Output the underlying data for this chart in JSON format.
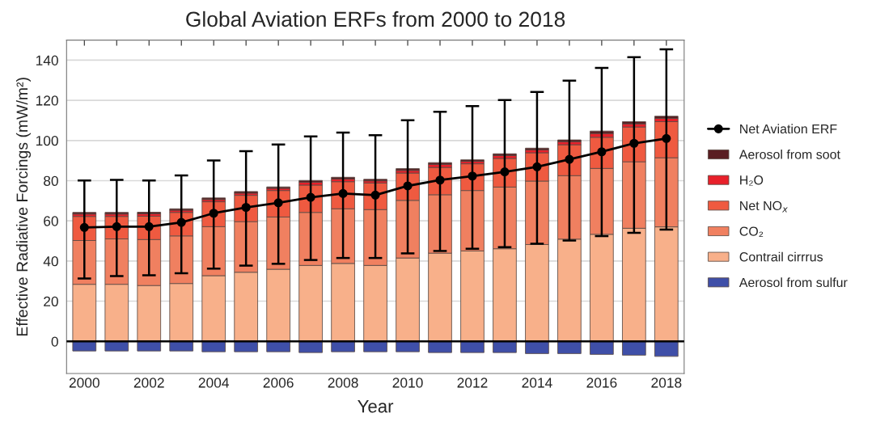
{
  "chart_data": {
    "type": "bar",
    "stacked": true,
    "title": "Global Aviation ERFs from 2000 to 2018",
    "xlabel": "Year",
    "ylabel": "Effective Radiative Forcings (mW/m²)",
    "categories": [
      "2000",
      null,
      "2002",
      null,
      "2004",
      null,
      "2006",
      null,
      "2008",
      null,
      "2010",
      null,
      "2012",
      null,
      "2014",
      null,
      "2016",
      null,
      "2018"
    ],
    "ylim": [
      -16,
      150
    ],
    "yticks": [
      0,
      20,
      40,
      60,
      80,
      100,
      120,
      140
    ],
    "grid": "y",
    "legend": "right",
    "ref_lines": [
      {
        "axis": "y",
        "value": 0,
        "color": "#000000"
      }
    ],
    "series": [
      {
        "name": "Aerosol from sulfur",
        "color": "#3f4fa8",
        "values": [
          -4.8,
          -4.8,
          -4.8,
          -4.8,
          -5.2,
          -5.2,
          -5.2,
          -5.6,
          -5.2,
          -5.2,
          -5.2,
          -5.6,
          -5.6,
          -5.6,
          -6.1,
          -6.1,
          -6.5,
          -6.9,
          -7.5
        ]
      },
      {
        "name": "Contrail cirrrus",
        "color": "#f8b08a",
        "values": [
          28.4,
          28.4,
          27.8,
          28.8,
          32.7,
          34.4,
          35.9,
          37.8,
          38.8,
          37.8,
          41.5,
          43.9,
          45.0,
          46.1,
          48.2,
          50.9,
          53.3,
          56.3,
          57.0
        ]
      },
      {
        "name": "CO₂",
        "color": "#f08060",
        "values": [
          21.8,
          22.6,
          22.9,
          23.7,
          24.4,
          25.2,
          26.0,
          26.4,
          27.2,
          27.8,
          28.7,
          29.1,
          30.1,
          30.7,
          31.6,
          31.6,
          32.8,
          33.1,
          34.4
        ]
      },
      {
        "name": "Net NO$_{x}$",
        "color": "#ef5a40",
        "values": [
          12.0,
          11.2,
          11.6,
          11.7,
          12.4,
          13.1,
          13.2,
          13.6,
          13.5,
          13.2,
          13.6,
          13.6,
          13.3,
          14.3,
          14.1,
          15.4,
          15.5,
          17.3,
          18.0
        ]
      },
      {
        "name": "H₂O",
        "color": "#e8202a",
        "values": [
          1.2,
          1.2,
          1.2,
          1.1,
          1.1,
          1.1,
          1.1,
          1.4,
          1.3,
          1.1,
          1.3,
          1.5,
          1.2,
          1.4,
          1.4,
          1.5,
          1.9,
          1.6,
          1.6
        ]
      },
      {
        "name": "Aerosol from soot",
        "color": "#5a1e22",
        "values": [
          0.8,
          0.8,
          0.8,
          0.7,
          0.8,
          0.8,
          0.7,
          0.9,
          0.9,
          0.8,
          0.9,
          0.9,
          0.8,
          0.9,
          0.9,
          0.9,
          1.2,
          1.1,
          1.1
        ]
      },
      {
        "name": "Net Aviation ERF",
        "type": "line",
        "color": "#000000",
        "marker": "circle",
        "values": [
          56.7,
          57.1,
          57.1,
          59.2,
          63.8,
          66.7,
          69.0,
          71.7,
          73.6,
          72.8,
          77.4,
          80.3,
          82.3,
          84.4,
          86.9,
          90.6,
          94.4,
          98.6,
          101.0
        ],
        "errors": [
          [
            31.3,
            80.1
          ],
          [
            32.5,
            80.4
          ],
          [
            32.9,
            80.1
          ],
          [
            33.9,
            82.6
          ],
          [
            36.2,
            90.1
          ],
          [
            37.7,
            94.7
          ],
          [
            38.6,
            98.0
          ],
          [
            40.5,
            102.0
          ],
          [
            41.5,
            103.9
          ],
          [
            41.5,
            102.6
          ],
          [
            43.8,
            110.1
          ],
          [
            45.0,
            114.3
          ],
          [
            46.1,
            117.1
          ],
          [
            46.9,
            120.1
          ],
          [
            48.6,
            124.2
          ],
          [
            50.2,
            129.8
          ],
          [
            52.4,
            136.1
          ],
          [
            54.0,
            141.5
          ],
          [
            55.6,
            145.4
          ]
        ]
      }
    ]
  }
}
